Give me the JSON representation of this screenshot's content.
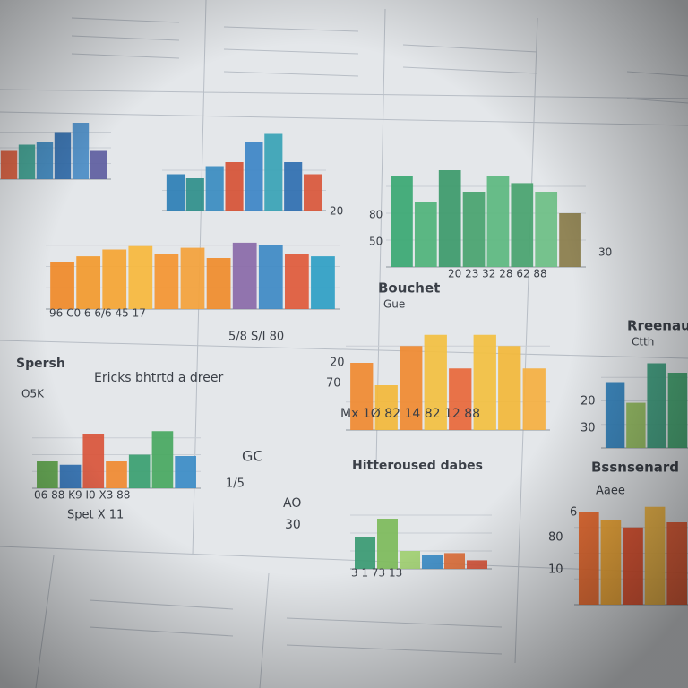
{
  "panels": [
    {
      "texts": [],
      "bars": [
        {
          "value": 45,
          "color": "#d65a3a"
        },
        {
          "value": 55,
          "color": "#3a9c8c"
        },
        {
          "value": 60,
          "color": "#3b83b8"
        },
        {
          "value": 75,
          "color": "#2f6aa8"
        },
        {
          "value": 90,
          "color": "#4a8cc4"
        },
        {
          "value": 45,
          "color": "#5e5ea0"
        }
      ]
    },
    {
      "texts": [
        "20"
      ],
      "bars": [
        {
          "value": 45,
          "color": "#2d7fb5"
        },
        {
          "value": 40,
          "color": "#2f8f8a"
        },
        {
          "value": 55,
          "color": "#3a8cc0"
        },
        {
          "value": 60,
          "color": "#d65335"
        },
        {
          "value": 85,
          "color": "#3d86c6"
        },
        {
          "value": 95,
          "color": "#38a3b5"
        },
        {
          "value": 60,
          "color": "#2f6fb0"
        },
        {
          "value": 45,
          "color": "#d9573a"
        }
      ]
    },
    {
      "texts": [
        "80",
        "50",
        "30",
        "20 23 32 28 62 88"
      ],
      "bars": [
        {
          "value": 85,
          "color": "#3aa872"
        },
        {
          "value": 60,
          "color": "#4fb37a"
        },
        {
          "value": 90,
          "color": "#3c9a6a"
        },
        {
          "value": 70,
          "color": "#48a36e"
        },
        {
          "value": 85,
          "color": "#5cb87f"
        },
        {
          "value": 78,
          "color": "#48a36e"
        },
        {
          "value": 70,
          "color": "#6cbf84"
        },
        {
          "value": 50,
          "color": "#8a7d4a"
        }
      ]
    },
    {
      "texts": [
        "96   C0 6 6/6  45  17",
        "5/8   S/I   80"
      ],
      "bars": [
        {
          "value": 55,
          "color": "#f08a28"
        },
        {
          "value": 62,
          "color": "#f39a2c"
        },
        {
          "value": 70,
          "color": "#f5a532"
        },
        {
          "value": 74,
          "color": "#f7b83c"
        },
        {
          "value": 65,
          "color": "#f49530"
        },
        {
          "value": 72,
          "color": "#f4a23a"
        },
        {
          "value": 60,
          "color": "#f08c2a"
        },
        {
          "value": 78,
          "color": "#8a6aa8"
        },
        {
          "value": 75,
          "color": "#3e8ac4"
        },
        {
          "value": 65,
          "color": "#e05a3a"
        },
        {
          "value": 62,
          "color": "#2f9fc4"
        }
      ]
    },
    {
      "texts": [
        "Bouchet",
        "Gue",
        "20",
        "70",
        "Mx 1Ø  82 14  82 12  88"
      ],
      "bars": [
        {
          "value": 60,
          "color": "#f08a30"
        },
        {
          "value": 40,
          "color": "#f3b83a"
        },
        {
          "value": 75,
          "color": "#f08a30"
        },
        {
          "value": 85,
          "color": "#f3c040"
        },
        {
          "value": 55,
          "color": "#e8683a"
        },
        {
          "value": 85,
          "color": "#f3c040"
        },
        {
          "value": 75,
          "color": "#f3b83a"
        },
        {
          "value": 55,
          "color": "#f5b040"
        }
      ]
    },
    {
      "texts": [
        "Rreenaud",
        "Ctth",
        "20",
        "30"
      ],
      "bars": [
        {
          "value": 70,
          "color": "#2f7fb8"
        },
        {
          "value": 48,
          "color": "#8fb85a"
        },
        {
          "value": 90,
          "color": "#3a9a7a"
        },
        {
          "value": 80,
          "color": "#3ea06a"
        }
      ]
    },
    {
      "texts": [
        "Spersh",
        "Ericks bhtrtd a dreer",
        "O5K",
        "06  88  K9  I0  X3  88",
        "Spet X 11",
        "GC",
        "1/5"
      ],
      "bars": [
        {
          "value": 40,
          "color": "#5aa046"
        },
        {
          "value": 35,
          "color": "#2f6fb0"
        },
        {
          "value": 80,
          "color": "#d9553a"
        },
        {
          "value": 40,
          "color": "#f08a30"
        },
        {
          "value": 50,
          "color": "#3aa070"
        },
        {
          "value": 85,
          "color": "#48a860"
        },
        {
          "value": 48,
          "color": "#3b8cc6"
        }
      ]
    },
    {
      "texts": [
        "Hitteroused dabes",
        "AO",
        "30",
        "3 1  73  13"
      ],
      "bars": [
        {
          "value": 45,
          "color": "#3a9a72"
        },
        {
          "value": 70,
          "color": "#7dbb5a"
        },
        {
          "value": 25,
          "color": "#9fcf70"
        },
        {
          "value": 20,
          "color": "#3b8cc6"
        },
        {
          "value": 22,
          "color": "#e0703a"
        },
        {
          "value": 12,
          "color": "#d9553a"
        }
      ]
    },
    {
      "texts": [
        "Bssnsenard",
        "Aaee",
        "6",
        "80",
        "10"
      ],
      "bars": [
        {
          "value": 90,
          "color": "#f06a2a"
        },
        {
          "value": 82,
          "color": "#f5a830"
        },
        {
          "value": 75,
          "color": "#e8502a"
        },
        {
          "value": 95,
          "color": "#f5b840"
        },
        {
          "value": 80,
          "color": "#ea5a30"
        }
      ]
    }
  ]
}
